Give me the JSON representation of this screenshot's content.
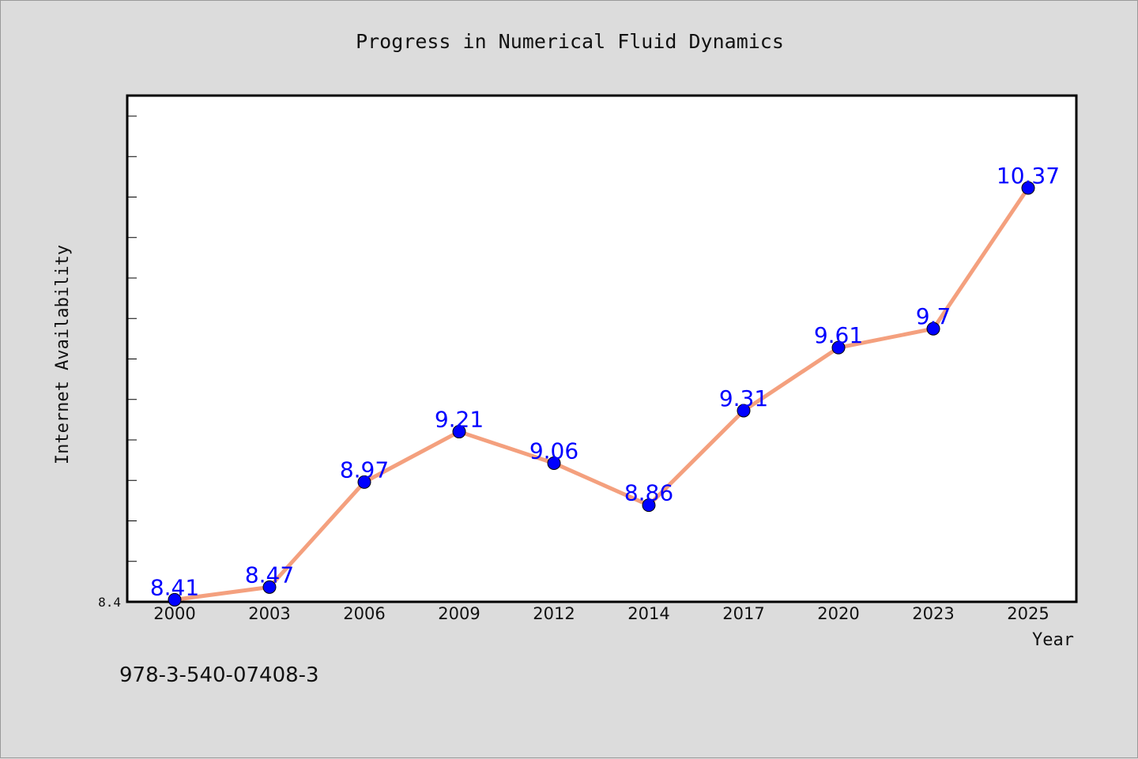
{
  "chart_data": {
    "type": "line",
    "title": "Progress in Numerical Fluid Dynamics",
    "xlabel": "Year",
    "ylabel": "Internet Availability",
    "categories": [
      "2000",
      "2003",
      "2006",
      "2009",
      "2012",
      "2014",
      "2017",
      "2020",
      "2023",
      "2025"
    ],
    "values": [
      8.41,
      8.47,
      8.97,
      9.21,
      9.06,
      8.86,
      9.31,
      9.61,
      9.7,
      10.37
    ],
    "data_labels": [
      "8.41",
      "8.47",
      "8.97",
      "9.21",
      "9.06",
      "8.86",
      "9.31",
      "9.61",
      "9.7",
      "10.37"
    ],
    "ylim": [
      8.4,
      10.81
    ],
    "y_tick_labels": [
      "8.4"
    ],
    "grid": false,
    "legend": "none",
    "colors": {
      "line": "#f4a07e",
      "marker": "#0000ff",
      "data_label": "#0000ff",
      "plot_background": "#ffffff",
      "page_background": "#dcdcdc"
    }
  },
  "footer": {
    "isbn": "978-3-540-07408-3"
  }
}
